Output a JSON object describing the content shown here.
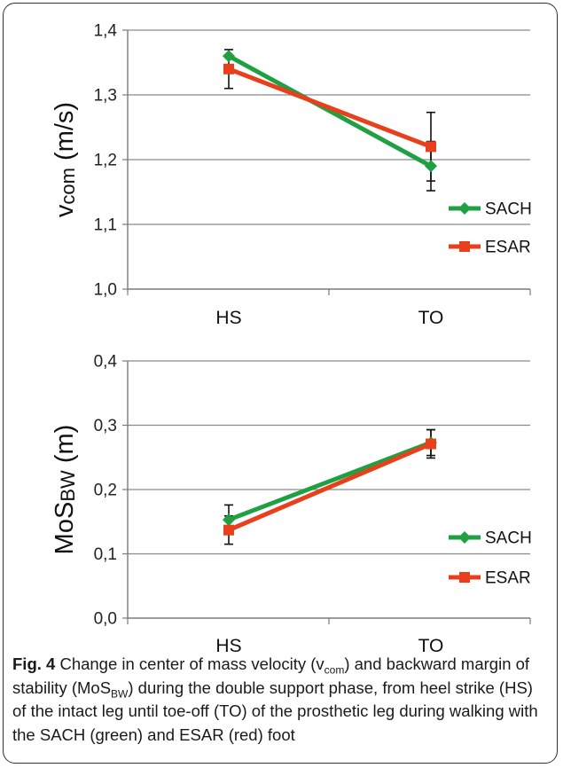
{
  "chart_data": [
    {
      "type": "line",
      "ylabel_main": "v",
      "ylabel_sub": "com",
      "ylabel_tail": " (m/s)",
      "categories": [
        "HS",
        "TO"
      ],
      "ylim": [
        1.0,
        1.4
      ],
      "yticks": [
        "1,0",
        "1,1",
        "1,2",
        "1,3",
        "1,4"
      ],
      "grid": true,
      "legend": "right",
      "series": [
        {
          "name": "SACH",
          "color": "#1fa043",
          "marker": "diamond",
          "values": [
            1.36,
            1.19
          ],
          "errors": [
            null,
            0.038
          ]
        },
        {
          "name": "ESAR",
          "color": "#e8401c",
          "marker": "square",
          "values": [
            1.34,
            1.22
          ],
          "errors": [
            0.03,
            0.053
          ]
        }
      ]
    },
    {
      "type": "line",
      "ylabel_main": "MoS",
      "ylabel_sub": "BW",
      "ylabel_tail": " (m)",
      "categories": [
        "HS",
        "TO"
      ],
      "ylim": [
        0.0,
        0.4
      ],
      "yticks": [
        "0,0",
        "0,1",
        "0,2",
        "0,3",
        "0,4"
      ],
      "grid": true,
      "legend": "right",
      "series": [
        {
          "name": "SACH",
          "color": "#1fa043",
          "marker": "diamond",
          "values": [
            0.153,
            0.273
          ],
          "errors": [
            0.023,
            0.02
          ]
        },
        {
          "name": "ESAR",
          "color": "#e8401c",
          "marker": "square",
          "values": [
            0.137,
            0.271
          ],
          "errors": [
            0.022,
            0.022
          ]
        }
      ]
    }
  ],
  "caption": {
    "fig_label": "Fig. 4",
    "part1": " Change in center of mass velocity (v",
    "sub1": "com",
    "part2": ") and backward margin of stability (MoS",
    "sub2": "BW",
    "part3": ") during the double support phase, from heel strike (HS) of the intact leg until toe-off (TO) of the prosthetic leg during walking with the SACH (green) and ESAR (red) foot"
  }
}
